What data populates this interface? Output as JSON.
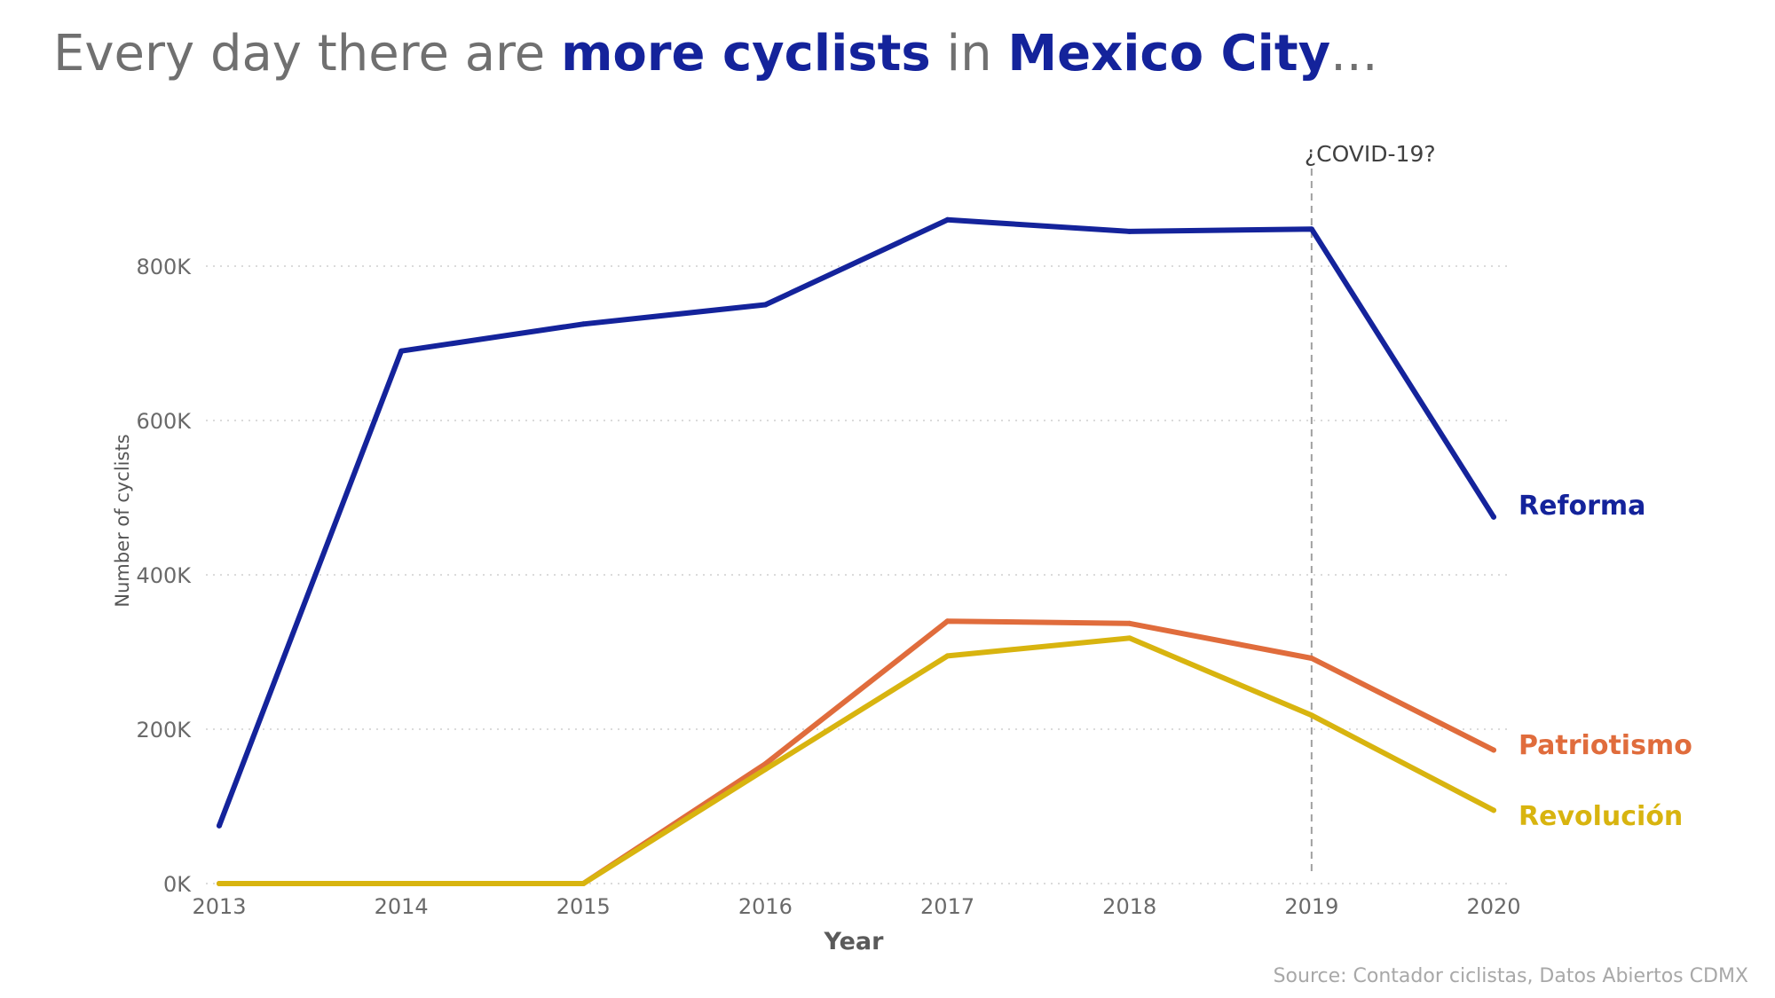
{
  "title": {
    "part1": "Every day there are ",
    "highlight1": "more cyclists",
    "part2": " in ",
    "highlight2": "Mexico City",
    "part3": "..."
  },
  "colors": {
    "Reforma": "#14239b",
    "Patriotismo": "#e06c3c",
    "Revolución": "#d8b40f",
    "grid": "#cfcfcf",
    "annotation_line": "#a0a0a0"
  },
  "chart_data": {
    "type": "line",
    "x": [
      2013,
      2014,
      2015,
      2016,
      2017,
      2018,
      2019,
      2020
    ],
    "series": [
      {
        "name": "Reforma",
        "values": [
          75000,
          690000,
          725000,
          750000,
          860000,
          845000,
          848000,
          475000
        ]
      },
      {
        "name": "Patriotismo",
        "values": [
          0,
          0,
          0,
          155000,
          340000,
          337000,
          292000,
          173000
        ]
      },
      {
        "name": "Revolución",
        "values": [
          0,
          0,
          0,
          148000,
          295000,
          318000,
          218000,
          95000
        ]
      }
    ],
    "xlabel": "Year",
    "ylabel": "Number of cyclists",
    "ylim": [
      0,
      900000
    ],
    "yticks": [
      0,
      200000,
      400000,
      600000,
      800000
    ],
    "ytick_labels": [
      "0K",
      "200K",
      "400K",
      "600K",
      "800K"
    ],
    "grid": "horizontal dotted",
    "legend": "direct labels at line ends",
    "annotations": [
      {
        "x": 2019,
        "text": "¿COVID-19?"
      }
    ]
  },
  "source": "Source: Contador ciclistas, Datos Abiertos CDMX"
}
